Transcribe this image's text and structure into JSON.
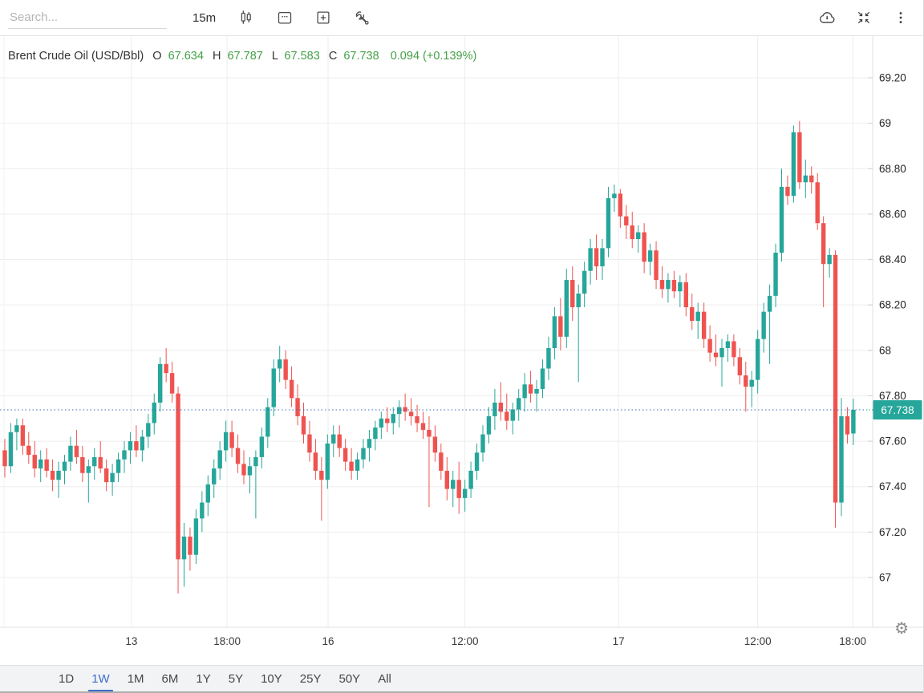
{
  "header": {
    "search_placeholder": "Search...",
    "timeframe_label": "15m",
    "left_icons": [
      "candlestick-style",
      "calendar",
      "add-panel",
      "tools"
    ],
    "right_icons": [
      "cloud-download",
      "collapse",
      "more-menu"
    ]
  },
  "legend": {
    "symbol": "Brent Crude Oil (USD/Bbl)",
    "o_label": "O",
    "o_value": "67.634",
    "h_label": "H",
    "h_value": "67.787",
    "l_label": "L",
    "l_value": "67.583",
    "c_label": "C",
    "c_value": "67.738",
    "change_value": "0.094 (+0.139%)"
  },
  "chart_data": {
    "type": "candlestick",
    "title": "Brent Crude Oil (USD/Bbl)",
    "interval": "15m",
    "last_candle": {
      "open": 67.634,
      "high": 67.787,
      "low": 67.583,
      "close": 67.738,
      "change": 0.094,
      "change_pct": "+0.139%"
    },
    "last_price": 67.738,
    "last_price_label": "67.738",
    "bull_color": "#26a69a",
    "bear_color": "#ef5350",
    "last_price_line_color": "#3c6eb9",
    "grid": true,
    "legend_green": "#43a047",
    "ylim": [
      66.78,
      69.39
    ],
    "y_axis": {
      "side": "right",
      "ticks": [
        {
          "value": 69.2,
          "label": "69.20"
        },
        {
          "value": 69.0,
          "label": "69"
        },
        {
          "value": 68.8,
          "label": "68.80"
        },
        {
          "value": 68.6,
          "label": "68.60"
        },
        {
          "value": 68.4,
          "label": "68.40"
        },
        {
          "value": 68.2,
          "label": "68.20"
        },
        {
          "value": 68.0,
          "label": "68"
        },
        {
          "value": 67.8,
          "label": "67.80"
        },
        {
          "value": 67.6,
          "label": "67.60"
        },
        {
          "value": 67.4,
          "label": "67.40"
        },
        {
          "value": 67.2,
          "label": "67.20"
        },
        {
          "value": 67.0,
          "label": "67"
        }
      ]
    },
    "x_axis": {
      "ticks": [
        {
          "label": "13",
          "index": 21.2
        },
        {
          "label": "18:00",
          "index": 37.2
        },
        {
          "label": "16",
          "index": 54.1
        },
        {
          "label": "12:00",
          "index": 77.0
        },
        {
          "label": "17",
          "index": 102.7
        },
        {
          "label": "12:00",
          "index": 126.0
        },
        {
          "label": "18:00",
          "index": 141.9
        }
      ]
    },
    "candles": [
      [
        67.56,
        67.61,
        67.44,
        67.49
      ],
      [
        67.49,
        67.68,
        67.46,
        67.64
      ],
      [
        67.64,
        67.7,
        67.56,
        67.67
      ],
      [
        67.67,
        67.7,
        67.54,
        67.58
      ],
      [
        67.58,
        67.64,
        67.5,
        67.54
      ],
      [
        67.54,
        67.6,
        67.44,
        67.48
      ],
      [
        67.48,
        67.56,
        67.42,
        67.52
      ],
      [
        67.52,
        67.57,
        67.44,
        67.47
      ],
      [
        67.47,
        67.52,
        67.38,
        67.43
      ],
      [
        67.43,
        67.51,
        67.35,
        67.47
      ],
      [
        67.47,
        67.54,
        67.41,
        67.51
      ],
      [
        67.51,
        67.62,
        67.47,
        67.58
      ],
      [
        67.58,
        67.65,
        67.5,
        67.53
      ],
      [
        67.53,
        67.58,
        67.42,
        67.46
      ],
      [
        67.46,
        67.52,
        67.33,
        67.49
      ],
      [
        67.49,
        67.57,
        67.43,
        67.53
      ],
      [
        67.53,
        67.6,
        67.46,
        67.48
      ],
      [
        67.48,
        67.52,
        67.38,
        67.42
      ],
      [
        67.42,
        67.5,
        67.36,
        67.46
      ],
      [
        67.46,
        67.55,
        67.42,
        67.52
      ],
      [
        67.52,
        67.6,
        67.46,
        67.56
      ],
      [
        67.56,
        67.64,
        67.5,
        67.6
      ],
      [
        67.6,
        67.67,
        67.53,
        67.56
      ],
      [
        67.56,
        67.65,
        67.51,
        67.62
      ],
      [
        67.62,
        67.72,
        67.57,
        67.68
      ],
      [
        67.68,
        67.81,
        67.63,
        67.77
      ],
      [
        67.77,
        67.97,
        67.73,
        67.94
      ],
      [
        67.94,
        68.01,
        67.86,
        67.9
      ],
      [
        67.9,
        67.95,
        67.77,
        67.81
      ],
      [
        67.81,
        67.84,
        66.93,
        67.08
      ],
      [
        67.08,
        67.24,
        66.96,
        67.18
      ],
      [
        67.18,
        67.22,
        67.03,
        67.1
      ],
      [
        67.1,
        67.3,
        67.06,
        67.26
      ],
      [
        67.26,
        67.38,
        67.2,
        67.33
      ],
      [
        67.33,
        67.45,
        67.27,
        67.41
      ],
      [
        67.41,
        67.52,
        67.35,
        67.48
      ],
      [
        67.48,
        67.6,
        67.43,
        67.56
      ],
      [
        67.56,
        67.69,
        67.51,
        67.64
      ],
      [
        67.64,
        67.69,
        67.53,
        67.57
      ],
      [
        67.57,
        67.63,
        67.46,
        67.5
      ],
      [
        67.5,
        67.56,
        67.41,
        67.45
      ],
      [
        67.45,
        67.53,
        67.37,
        67.49
      ],
      [
        67.49,
        67.56,
        67.26,
        67.53
      ],
      [
        67.53,
        67.66,
        67.48,
        67.62
      ],
      [
        67.62,
        67.79,
        67.57,
        67.75
      ],
      [
        67.75,
        67.96,
        67.71,
        67.92
      ],
      [
        67.92,
        68.02,
        67.86,
        67.96
      ],
      [
        67.96,
        68.0,
        67.83,
        67.87
      ],
      [
        67.87,
        67.93,
        67.75,
        67.79
      ],
      [
        67.79,
        67.85,
        67.67,
        67.71
      ],
      [
        67.71,
        67.77,
        67.59,
        67.63
      ],
      [
        67.63,
        67.69,
        67.51,
        67.55
      ],
      [
        67.55,
        67.61,
        67.43,
        67.47
      ],
      [
        67.47,
        67.53,
        67.25,
        67.43
      ],
      [
        67.43,
        67.63,
        67.39,
        67.59
      ],
      [
        67.59,
        67.67,
        67.53,
        67.63
      ],
      [
        67.63,
        67.67,
        67.53,
        67.57
      ],
      [
        67.57,
        67.61,
        67.47,
        67.51
      ],
      [
        67.51,
        67.57,
        67.43,
        67.47
      ],
      [
        67.47,
        67.55,
        67.43,
        67.52
      ],
      [
        67.52,
        67.61,
        67.48,
        67.57
      ],
      [
        67.57,
        67.65,
        67.51,
        67.61
      ],
      [
        67.61,
        67.69,
        67.56,
        67.66
      ],
      [
        67.66,
        67.73,
        67.61,
        67.7
      ],
      [
        67.7,
        67.75,
        67.64,
        67.68
      ],
      [
        67.68,
        67.75,
        67.63,
        67.72
      ],
      [
        67.72,
        67.78,
        67.66,
        67.75
      ],
      [
        67.75,
        67.81,
        67.69,
        67.73
      ],
      [
        67.73,
        67.79,
        67.67,
        67.71
      ],
      [
        67.71,
        67.76,
        67.64,
        67.68
      ],
      [
        67.68,
        67.73,
        67.61,
        67.65
      ],
      [
        67.65,
        67.71,
        67.31,
        67.62
      ],
      [
        67.62,
        67.67,
        67.51,
        67.55
      ],
      [
        67.55,
        67.59,
        67.43,
        67.47
      ],
      [
        67.47,
        67.53,
        67.34,
        67.39
      ],
      [
        67.39,
        67.47,
        67.31,
        67.43
      ],
      [
        67.43,
        67.51,
        67.28,
        67.35
      ],
      [
        67.35,
        67.43,
        67.29,
        67.39
      ],
      [
        67.39,
        67.51,
        67.35,
        67.47
      ],
      [
        67.47,
        67.59,
        67.43,
        67.55
      ],
      [
        67.55,
        67.67,
        67.51,
        67.63
      ],
      [
        67.63,
        67.75,
        67.59,
        67.71
      ],
      [
        67.71,
        67.83,
        67.65,
        67.77
      ],
      [
        67.77,
        67.86,
        67.69,
        67.73
      ],
      [
        67.73,
        67.81,
        67.65,
        67.69
      ],
      [
        67.69,
        67.77,
        67.63,
        67.74
      ],
      [
        67.74,
        67.83,
        67.69,
        67.79
      ],
      [
        67.79,
        67.9,
        67.73,
        67.85
      ],
      [
        67.85,
        67.91,
        67.77,
        67.81
      ],
      [
        67.81,
        67.87,
        67.73,
        67.83
      ],
      [
        67.83,
        67.96,
        67.79,
        67.92
      ],
      [
        67.92,
        68.06,
        67.87,
        68.01
      ],
      [
        68.01,
        68.19,
        67.96,
        68.15
      ],
      [
        68.15,
        68.23,
        68.0,
        68.06
      ],
      [
        68.06,
        68.36,
        68.01,
        68.31
      ],
      [
        68.31,
        68.37,
        68.13,
        68.19
      ],
      [
        68.19,
        68.29,
        67.86,
        68.25
      ],
      [
        68.25,
        68.39,
        68.19,
        68.35
      ],
      [
        68.35,
        68.49,
        68.29,
        68.45
      ],
      [
        68.45,
        68.51,
        68.31,
        68.37
      ],
      [
        68.37,
        68.49,
        68.31,
        68.45
      ],
      [
        68.45,
        68.72,
        68.41,
        68.67
      ],
      [
        68.67,
        68.73,
        68.61,
        68.69
      ],
      [
        68.69,
        68.71,
        68.54,
        68.59
      ],
      [
        68.59,
        68.64,
        68.49,
        68.55
      ],
      [
        68.55,
        68.61,
        68.45,
        68.49
      ],
      [
        68.49,
        68.55,
        68.43,
        68.52
      ],
      [
        68.52,
        68.56,
        68.34,
        68.39
      ],
      [
        68.39,
        68.47,
        68.33,
        68.44
      ],
      [
        68.44,
        68.48,
        68.27,
        68.31
      ],
      [
        68.31,
        68.37,
        68.23,
        68.27
      ],
      [
        68.27,
        68.34,
        68.21,
        68.31
      ],
      [
        68.31,
        68.35,
        68.23,
        68.26
      ],
      [
        68.26,
        68.33,
        68.19,
        68.3
      ],
      [
        68.3,
        68.34,
        68.15,
        68.19
      ],
      [
        68.19,
        68.25,
        68.09,
        68.13
      ],
      [
        68.13,
        68.21,
        68.05,
        68.17
      ],
      [
        68.17,
        68.21,
        68.01,
        68.05
      ],
      [
        68.05,
        68.11,
        67.95,
        67.99
      ],
      [
        67.99,
        68.07,
        67.93,
        67.97
      ],
      [
        67.97,
        68.05,
        67.84,
        68.01
      ],
      [
        68.01,
        68.07,
        67.95,
        68.04
      ],
      [
        68.04,
        68.07,
        67.93,
        67.97
      ],
      [
        67.97,
        68.01,
        67.85,
        67.89
      ],
      [
        67.89,
        67.95,
        67.73,
        67.84
      ],
      [
        67.84,
        67.91,
        67.75,
        67.87
      ],
      [
        67.87,
        68.09,
        67.81,
        68.05
      ],
      [
        68.05,
        68.21,
        67.99,
        68.17
      ],
      [
        68.17,
        68.29,
        67.94,
        68.24
      ],
      [
        68.24,
        68.47,
        68.19,
        68.43
      ],
      [
        68.43,
        68.8,
        68.39,
        68.72
      ],
      [
        68.72,
        68.77,
        68.64,
        68.68
      ],
      [
        68.68,
        68.99,
        68.65,
        68.96
      ],
      [
        68.96,
        69.01,
        68.71,
        68.74
      ],
      [
        68.74,
        68.84,
        68.67,
        68.77
      ],
      [
        68.77,
        68.81,
        68.69,
        68.74
      ],
      [
        68.74,
        68.78,
        68.53,
        68.56
      ],
      [
        68.56,
        68.59,
        68.19,
        68.38
      ],
      [
        68.38,
        68.45,
        68.32,
        68.42
      ],
      [
        68.42,
        68.44,
        67.22,
        67.33
      ],
      [
        67.33,
        67.79,
        67.27,
        67.71
      ],
      [
        67.71,
        67.75,
        67.59,
        67.63
      ],
      [
        67.634,
        67.787,
        67.583,
        67.738
      ]
    ]
  },
  "bottom_bar": {
    "ranges": [
      {
        "label": "1D",
        "selected": false
      },
      {
        "label": "1W",
        "selected": true
      },
      {
        "label": "1M",
        "selected": false
      },
      {
        "label": "6M",
        "selected": false
      },
      {
        "label": "1Y",
        "selected": false
      },
      {
        "label": "5Y",
        "selected": false
      },
      {
        "label": "10Y",
        "selected": false
      },
      {
        "label": "25Y",
        "selected": false
      },
      {
        "label": "50Y",
        "selected": false
      },
      {
        "label": "All",
        "selected": false
      }
    ]
  }
}
